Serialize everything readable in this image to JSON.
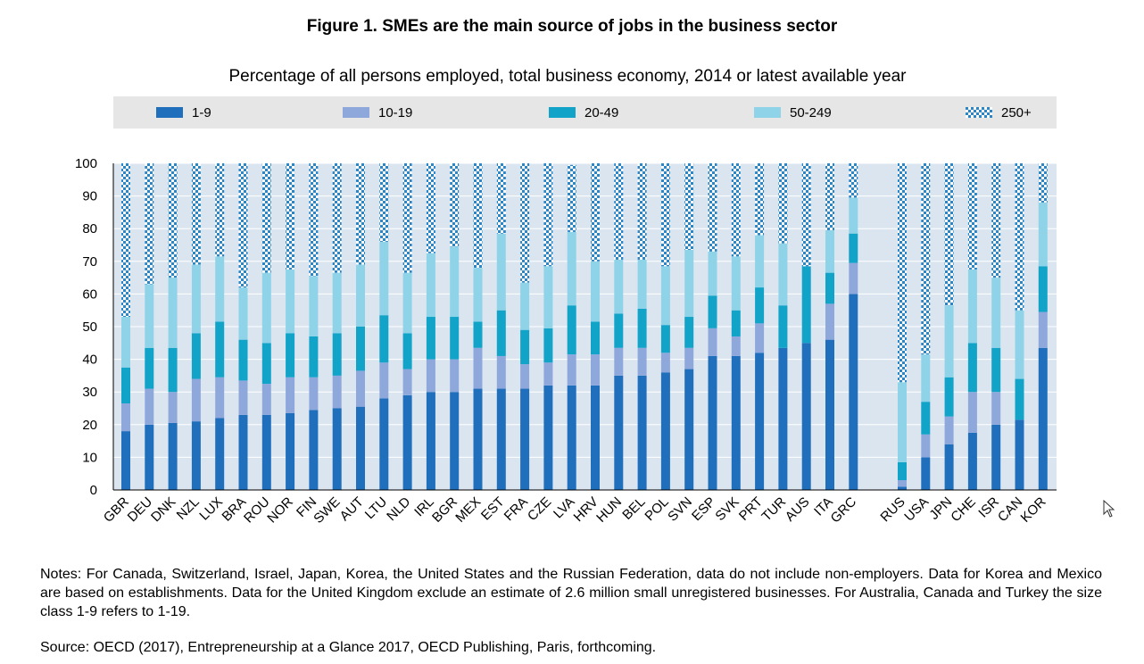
{
  "title": "Figure 1.  SMEs are the main source of jobs in the business sector",
  "subtitle": "Percentage of all persons employed, total business economy, 2014 or latest available year",
  "notes": "Notes: For Canada, Switzerland, Israel, Japan, Korea, the United States and the Russian Federation, data do not include non-employers. Data for Korea and Mexico are based on establishments. Data for the United Kingdom exclude an estimate of 2.6 million small unregistered businesses. For Australia, Canada and Turkey the size class 1-9 refers to 1-19.",
  "source": "Source: OECD (2017), Entrepreneurship at a Glance 2017, OECD Publishing, Paris, forthcoming.",
  "colors": {
    "s1_9": "#1f6fbd",
    "s10_19": "#8fa8dc",
    "s20_49": "#12a3c9",
    "s50_249": "#8fd3e8",
    "s250_fill": "#2b86c8",
    "plot_bg": "#dbe5f0",
    "legend_bg": "#e6e6e6",
    "gridline": "#ffffff"
  },
  "chart_data": {
    "type": "bar",
    "stacked": true,
    "title": "Figure 1.  SMEs are the main source of jobs in the business sector",
    "subtitle": "Percentage of all persons employed, total business economy, 2014 or latest available year",
    "ylim": [
      0,
      100
    ],
    "yticks": [
      0,
      10,
      20,
      30,
      40,
      50,
      60,
      70,
      80,
      90,
      100
    ],
    "grid": true,
    "legend_position": "top",
    "groups": [
      [
        "GBR",
        "DEU",
        "DNK",
        "NZL",
        "LUX",
        "BRA",
        "ROU",
        "NOR",
        "FIN",
        "SWE",
        "AUT",
        "LTU",
        "NLD",
        "IRL",
        "BGR",
        "MEX",
        "EST",
        "FRA",
        "CZE",
        "LVA",
        "HRV",
        "HUN",
        "BEL",
        "POL",
        "SVN",
        "ESP",
        "SVK",
        "PRT",
        "TUR",
        "AUS",
        "ITA",
        "GRC"
      ],
      [
        "RUS",
        "USA",
        "JPN",
        "CHE",
        "ISR",
        "CAN",
        "KOR"
      ]
    ],
    "categories": [
      "GBR",
      "DEU",
      "DNK",
      "NZL",
      "LUX",
      "BRA",
      "ROU",
      "NOR",
      "FIN",
      "SWE",
      "AUT",
      "LTU",
      "NLD",
      "IRL",
      "BGR",
      "MEX",
      "EST",
      "FRA",
      "CZE",
      "LVA",
      "HRV",
      "HUN",
      "BEL",
      "POL",
      "SVN",
      "ESP",
      "SVK",
      "PRT",
      "TUR",
      "AUS",
      "ITA",
      "GRC",
      "RUS",
      "USA",
      "JPN",
      "CHE",
      "ISR",
      "CAN",
      "KOR"
    ],
    "series": [
      {
        "name": "1-9",
        "values": [
          18,
          20,
          20.5,
          21,
          22,
          23,
          23,
          23.5,
          24.5,
          25,
          25.5,
          28,
          29,
          30,
          30,
          31,
          31,
          31,
          32,
          32,
          32,
          35,
          35,
          36,
          37,
          41,
          41,
          42,
          43.5,
          45,
          46,
          60,
          1,
          10,
          14,
          17.5,
          20,
          21.5,
          43.5
        ]
      },
      {
        "name": "10-19",
        "values": [
          8.5,
          11,
          9.5,
          13,
          12.5,
          10.5,
          9.5,
          11,
          10,
          10,
          11,
          11,
          8,
          10,
          10,
          12.5,
          10,
          7.5,
          7,
          9.5,
          9.5,
          8.5,
          8.5,
          6,
          6.5,
          8.5,
          6,
          9,
          0,
          0,
          11,
          9.5,
          2,
          7,
          8.5,
          12.5,
          10,
          0,
          11
        ]
      },
      {
        "name": "20-49",
        "values": [
          11,
          12.5,
          13.5,
          14,
          17,
          12.5,
          12.5,
          13.5,
          12.5,
          13,
          13.5,
          14.5,
          11,
          13,
          13,
          8,
          14,
          10.5,
          10.5,
          15,
          10,
          10.5,
          12,
          8.5,
          9.5,
          10,
          8,
          11,
          13,
          23.5,
          9.5,
          9,
          5.5,
          10,
          12,
          15,
          13.5,
          12.5,
          14
        ]
      },
      {
        "name": "50-249",
        "values": [
          15.5,
          19.5,
          21.5,
          21,
          20,
          16,
          21.5,
          19.5,
          18.5,
          18.5,
          19,
          22.5,
          18.5,
          19.5,
          21.5,
          16.5,
          23.5,
          14.5,
          19,
          22.5,
          18.5,
          16.5,
          15,
          18,
          20.5,
          13.5,
          16.5,
          16,
          19,
          0,
          13,
          11,
          24.5,
          14.5,
          22,
          22.5,
          21.5,
          21,
          19.5
        ]
      },
      {
        "name": "250+",
        "values": [
          47,
          37,
          35,
          31,
          28.5,
          38,
          33.5,
          32.5,
          34.5,
          33.5,
          31,
          24,
          33.5,
          27.5,
          25.5,
          32,
          21.5,
          36.5,
          31.5,
          20.5,
          30,
          29.5,
          29.5,
          31.5,
          26.5,
          27,
          28.5,
          22,
          24.5,
          31.5,
          20.5,
          10.5,
          67,
          58.5,
          43.5,
          32.5,
          35,
          45,
          12
        ]
      }
    ]
  }
}
